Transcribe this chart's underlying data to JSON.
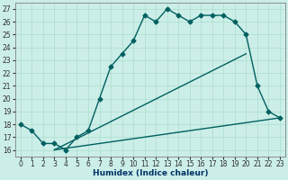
{
  "xlabel": "Humidex (Indice chaleur)",
  "bg_color": "#cceee8",
  "line_color": "#006060",
  "grid_color": "#aaddcc",
  "xlim": [
    -0.5,
    23.5
  ],
  "ylim": [
    15.5,
    27.5
  ],
  "xticks": [
    0,
    1,
    2,
    3,
    4,
    5,
    6,
    7,
    8,
    9,
    10,
    11,
    12,
    13,
    14,
    15,
    16,
    17,
    18,
    19,
    20,
    21,
    22,
    23
  ],
  "yticks": [
    16,
    17,
    18,
    19,
    20,
    21,
    22,
    23,
    24,
    25,
    26,
    27
  ],
  "curve1_x": [
    0,
    1,
    2,
    3,
    4,
    5,
    6,
    7,
    8,
    9,
    10,
    11,
    12,
    13,
    14,
    15,
    16,
    17,
    18,
    19,
    20,
    21,
    22,
    23
  ],
  "curve1_y": [
    18,
    17.5,
    16.5,
    16.5,
    16,
    17,
    17.5,
    20,
    22.5,
    23.5,
    24.5,
    26.5,
    26,
    27,
    26.5,
    26,
    26.5,
    26.5,
    26.5,
    26,
    25,
    21,
    19,
    18.5
  ],
  "line1_x": [
    3,
    20
  ],
  "line1_y": [
    16,
    23.5
  ],
  "line2_x": [
    3,
    23
  ],
  "line2_y": [
    16,
    18.5
  ],
  "marker": "D",
  "markersize": 2.5,
  "linewidth": 1.0,
  "tick_fontsize": 5.5,
  "xlabel_fontsize": 6.5
}
